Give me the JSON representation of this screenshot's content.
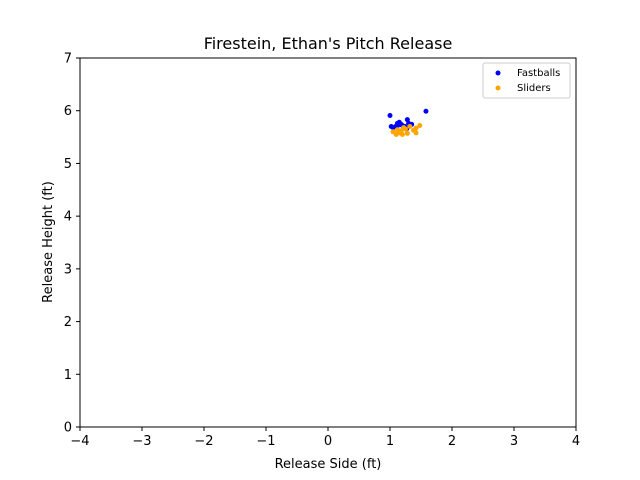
{
  "chart_data": {
    "type": "scatter",
    "title": "Firestein, Ethan's Pitch Release",
    "xlabel": "Release Side (ft)",
    "ylabel": "Release Height (ft)",
    "xlim": [
      -4,
      4
    ],
    "ylim": [
      0,
      7
    ],
    "xticks": [
      "−4",
      "−3",
      "−2",
      "−1",
      "0",
      "1",
      "2",
      "3",
      "4"
    ],
    "xtick_values": [
      -4,
      -3,
      -2,
      -1,
      0,
      1,
      2,
      3,
      4
    ],
    "yticks": [
      "0",
      "1",
      "2",
      "3",
      "4",
      "5",
      "6",
      "7"
    ],
    "ytick_values": [
      0,
      1,
      2,
      3,
      4,
      5,
      6,
      7
    ],
    "grid": false,
    "legend_position": "top-right",
    "series": [
      {
        "name": "Fastballs",
        "color": "#0000ff",
        "points": [
          {
            "x": 1.0,
            "y": 5.91
          },
          {
            "x": 1.58,
            "y": 5.99
          },
          {
            "x": 1.02,
            "y": 5.7
          },
          {
            "x": 1.05,
            "y": 5.68
          },
          {
            "x": 1.12,
            "y": 5.76
          },
          {
            "x": 1.15,
            "y": 5.78
          },
          {
            "x": 1.18,
            "y": 5.74
          },
          {
            "x": 1.2,
            "y": 5.72
          },
          {
            "x": 1.24,
            "y": 5.7
          },
          {
            "x": 1.28,
            "y": 5.83
          },
          {
            "x": 1.3,
            "y": 5.76
          },
          {
            "x": 1.14,
            "y": 5.73
          },
          {
            "x": 1.27,
            "y": 5.66
          },
          {
            "x": 1.35,
            "y": 5.74
          },
          {
            "x": 1.1,
            "y": 5.71
          }
        ]
      },
      {
        "name": "Sliders",
        "color": "#ffa500",
        "points": [
          {
            "x": 1.05,
            "y": 5.6
          },
          {
            "x": 1.1,
            "y": 5.55
          },
          {
            "x": 1.15,
            "y": 5.58
          },
          {
            "x": 1.18,
            "y": 5.62
          },
          {
            "x": 1.2,
            "y": 5.55
          },
          {
            "x": 1.25,
            "y": 5.65
          },
          {
            "x": 1.28,
            "y": 5.57
          },
          {
            "x": 1.32,
            "y": 5.7
          },
          {
            "x": 1.38,
            "y": 5.63
          },
          {
            "x": 1.42,
            "y": 5.58
          },
          {
            "x": 1.42,
            "y": 5.67
          },
          {
            "x": 1.48,
            "y": 5.72
          },
          {
            "x": 1.22,
            "y": 5.68
          },
          {
            "x": 1.12,
            "y": 5.64
          }
        ]
      }
    ]
  }
}
